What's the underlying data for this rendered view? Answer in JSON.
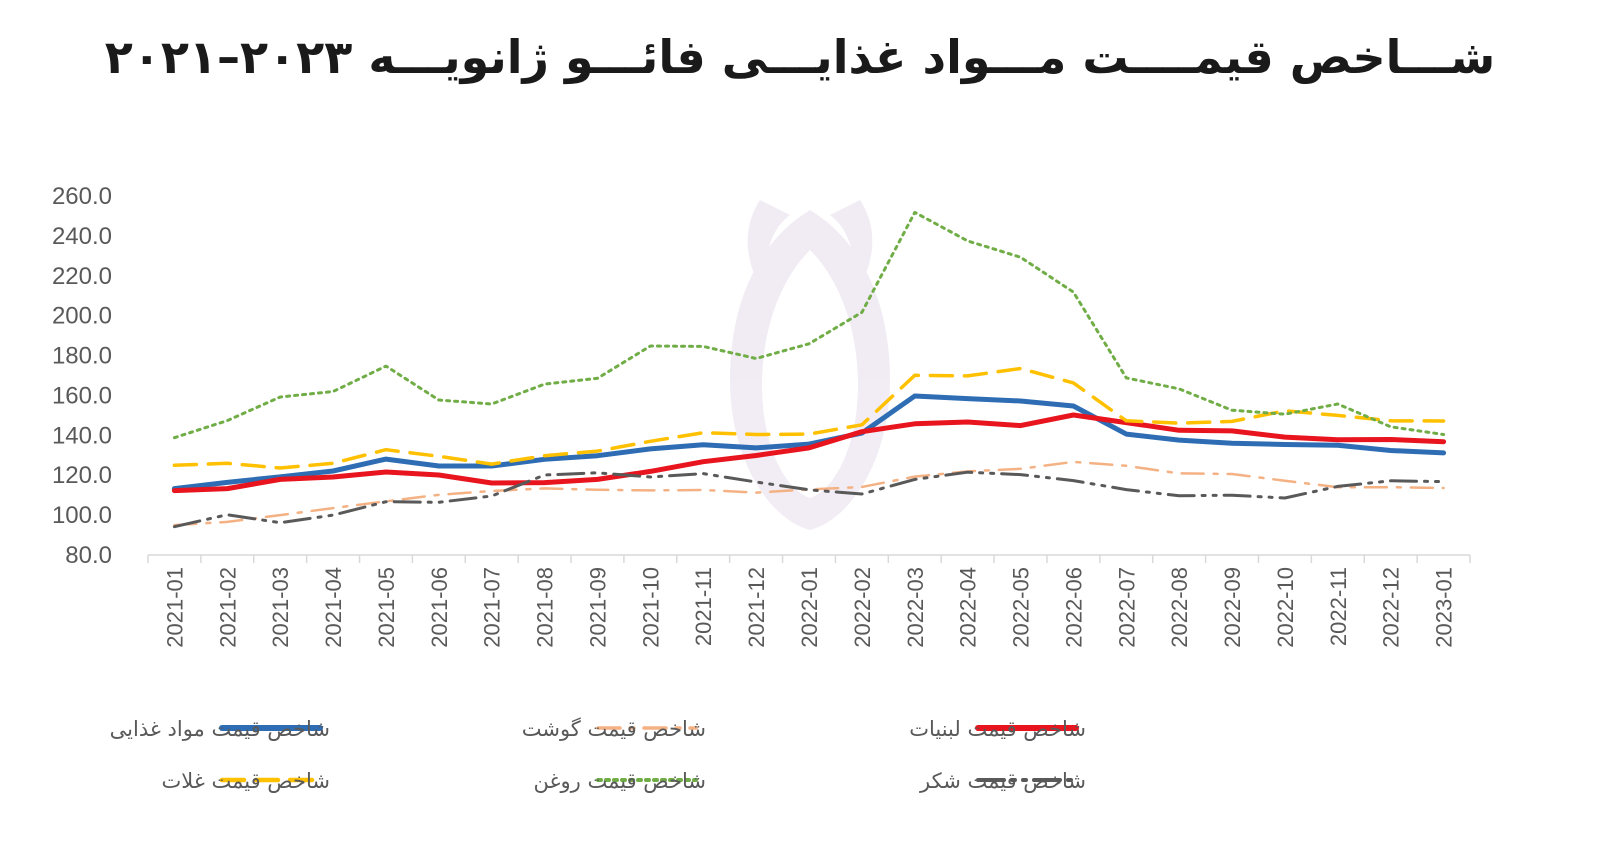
{
  "chart_data": {
    "type": "line",
    "title": "شـــاخص قیمــــت مـــواد غذایـــی فائـــو ژانویـــه ۲۰۲۳–۲۰۲۱",
    "xlabel": "",
    "ylabel": "",
    "ylim": [
      80,
      260
    ],
    "yticks": [
      "80.0",
      "100.0",
      "120.0",
      "140.0",
      "160.0",
      "180.0",
      "200.0",
      "220.0",
      "240.0",
      "260.0"
    ],
    "grid": false,
    "legend_position": "bottom",
    "categories": [
      "2021-01",
      "2021-02",
      "2021-03",
      "2021-04",
      "2021-05",
      "2021-06",
      "2021-07",
      "2021-08",
      "2021-09",
      "2021-10",
      "2021-11",
      "2021-12",
      "2022-01",
      "2022-02",
      "2022-03",
      "2022-04",
      "2022-05",
      "2022-06",
      "2022-07",
      "2022-08",
      "2022-09",
      "2022-10",
      "2022-11",
      "2022-12",
      "2023-01"
    ],
    "series": [
      {
        "name": "شاخص قیمت مواد غذایی",
        "color": "#2e6db4",
        "style": "solid",
        "values": [
          113.3,
          116.4,
          119.2,
          122.1,
          128.1,
          124.6,
          124.6,
          128.0,
          129.8,
          133.2,
          135.3,
          133.7,
          135.6,
          141.1,
          159.7,
          158.4,
          157.2,
          154.7,
          140.6,
          137.6,
          136.0,
          135.4,
          135.0,
          132.4,
          131.2
        ]
      },
      {
        "name": "شاخص قیمت گوشت",
        "color": "#f4b183",
        "style": "dashdot",
        "values": [
          95.0,
          96.6,
          100.0,
          103.5,
          106.9,
          110.2,
          112.1,
          113.4,
          112.7,
          112.4,
          112.6,
          111.3,
          112.9,
          114.1,
          119.3,
          121.9,
          123.2,
          126.7,
          124.7,
          120.9,
          120.6,
          117.2,
          114.0,
          114.0,
          113.6
        ]
      },
      {
        "name": "شاخص قیمت لبنیات",
        "color": "#e8141e",
        "style": "solid",
        "values": [
          112.3,
          113.3,
          117.9,
          119.1,
          121.6,
          120.1,
          116.1,
          116.3,
          117.9,
          121.9,
          126.8,
          129.9,
          133.7,
          141.8,
          145.8,
          146.7,
          144.9,
          150.2,
          146.4,
          142.5,
          142.2,
          139.1,
          137.8,
          137.9,
          136.8
        ]
      },
      {
        "name": "شاخص قیمت غلات",
        "color": "#ffc000",
        "style": "dashed",
        "values": [
          125.0,
          126.0,
          123.6,
          126.0,
          132.8,
          129.5,
          125.6,
          129.8,
          132.1,
          137.0,
          141.3,
          140.4,
          140.6,
          145.3,
          170.1,
          169.8,
          173.5,
          166.3,
          147.3,
          146.1,
          147.0,
          152.3,
          150.0,
          147.3,
          147.2
        ]
      },
      {
        "name": "شاخص قیمت روغن",
        "color": "#70ad47",
        "style": "dotted",
        "values": [
          138.8,
          147.4,
          159.2,
          162.0,
          174.7,
          157.7,
          155.7,
          165.7,
          168.6,
          184.8,
          184.6,
          178.5,
          185.9,
          201.7,
          251.8,
          237.5,
          229.3,
          211.8,
          168.8,
          163.3,
          152.6,
          150.6,
          155.7,
          144.3,
          140.4
        ]
      },
      {
        "name": "شاخص قیمت شکر",
        "color": "#595959",
        "style": "longdashdotdot",
        "values": [
          94.2,
          100.2,
          96.2,
          100.0,
          106.7,
          106.4,
          109.6,
          120.1,
          121.2,
          119.1,
          120.8,
          116.6,
          112.7,
          110.6,
          117.9,
          121.5,
          120.3,
          117.3,
          112.8,
          109.7,
          110.0,
          108.6,
          114.4,
          117.2,
          116.8
        ]
      }
    ]
  },
  "legend_rows": [
    [
      0,
      1,
      2
    ],
    [
      3,
      4,
      5
    ]
  ]
}
